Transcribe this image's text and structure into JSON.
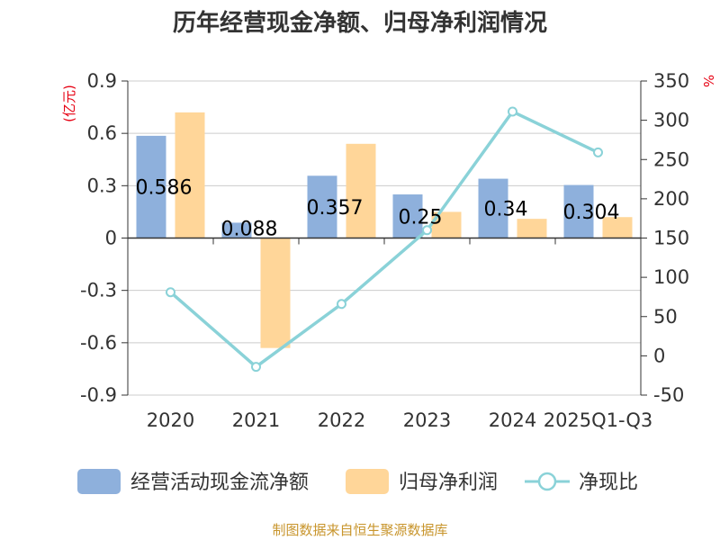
{
  "chart_data": {
    "type": "bar",
    "title": "历年经营现金净额、归母净利润情况",
    "categories": [
      "2020",
      "2021",
      "2022",
      "2023",
      "2024",
      "2025Q1-Q3"
    ],
    "series": [
      {
        "name": "经营活动现金流净额",
        "type": "bar",
        "axis": "left",
        "color": "#8eb0dc",
        "values": [
          0.586,
          0.088,
          0.357,
          0.25,
          0.34,
          0.304
        ]
      },
      {
        "name": "归母净利润",
        "type": "bar",
        "axis": "left",
        "color": "#ffd699",
        "values": [
          0.72,
          -0.63,
          0.54,
          0.15,
          0.11,
          0.12
        ]
      },
      {
        "name": "净现比",
        "type": "line",
        "axis": "right",
        "color": "#8ad2d8",
        "values": [
          81,
          -14,
          66,
          160,
          311,
          259
        ]
      }
    ],
    "data_labels": [
      "0.586",
      "0.088",
      "0.357",
      "0.25",
      "0.34",
      "0.304"
    ],
    "left_axis": {
      "unit": "(亿元)",
      "min": -0.9,
      "max": 0.9,
      "ticks": [
        "0.9",
        "0.6",
        "0.3",
        "0",
        "-0.3",
        "-0.6",
        "-0.9"
      ],
      "tick_values": [
        0.9,
        0.6,
        0.3,
        0,
        -0.3,
        -0.6,
        -0.9
      ]
    },
    "right_axis": {
      "unit": "%",
      "min": -50,
      "max": 350,
      "ticks": [
        "350",
        "300",
        "250",
        "200",
        "150",
        "100",
        "50",
        "0",
        "-50"
      ],
      "tick_values": [
        350,
        300,
        250,
        200,
        150,
        100,
        50,
        0,
        -50
      ]
    },
    "grid": true,
    "legend_position": "bottom"
  },
  "source": "制图数据来自恒生聚源数据库"
}
